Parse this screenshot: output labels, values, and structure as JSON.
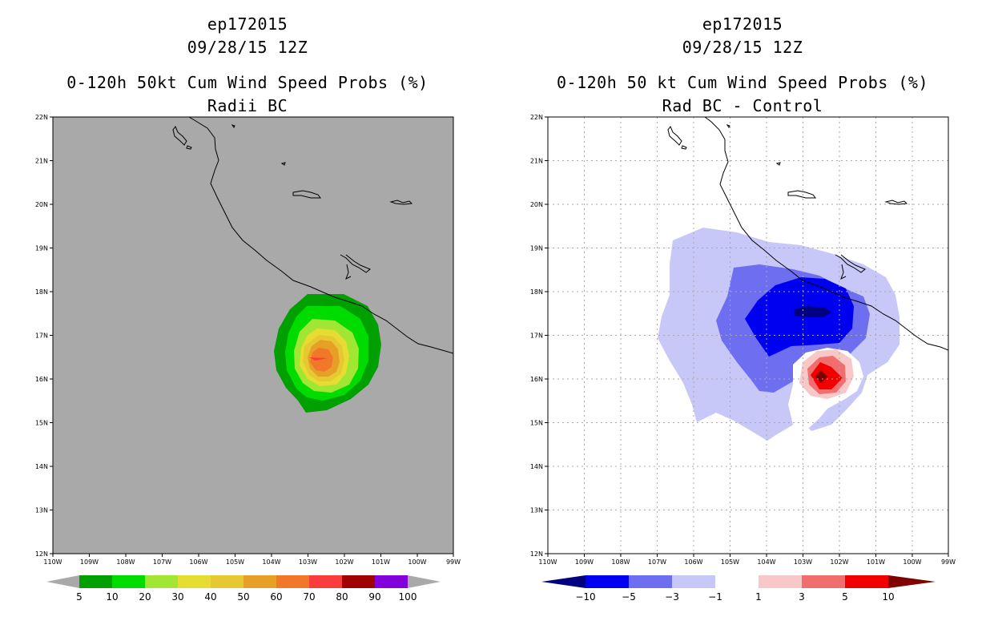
{
  "left": {
    "storm_id": "ep172015",
    "date": "09/28/15 12Z",
    "title": "0-120h 50kt Cum Wind Speed Probs (%)",
    "subtitle": "Radii BC",
    "background_color": "#a9a9a9",
    "lat_labels": [
      "22N",
      "21N",
      "20N",
      "19N",
      "18N",
      "17N",
      "16N",
      "15N",
      "14N",
      "13N",
      "12N"
    ],
    "lon_labels": [
      "110W",
      "109W",
      "108W",
      "107W",
      "106W",
      "105W",
      "104W",
      "103W",
      "102W",
      "101W",
      "100W",
      "99W"
    ],
    "colorbar": {
      "low_arrow": "#a9a9a9",
      "high_arrow": "#a9a9a9",
      "colors": [
        "#00a000",
        "#00dc00",
        "#a0e632",
        "#e6dc32",
        "#e6c832",
        "#e6a028",
        "#f07828",
        "#fa3c3c",
        "#a00000",
        "#8200dc"
      ],
      "labels": [
        "5",
        "10",
        "20",
        "30",
        "40",
        "50",
        "60",
        "70",
        "80",
        "90",
        "100"
      ]
    }
  },
  "right": {
    "storm_id": "ep172015",
    "date": "09/28/15 12Z",
    "title": "0-120h 50 kt Cum Wind Speed Probs (%)",
    "subtitle": "Rad BC - Control",
    "background_color": "#ffffff",
    "lat_labels": [
      "22N",
      "21N",
      "20N",
      "19N",
      "18N",
      "17N",
      "16N",
      "15N",
      "14N",
      "13N",
      "12N"
    ],
    "lon_labels": [
      "110W",
      "109W",
      "108W",
      "107W",
      "106W",
      "105W",
      "104W",
      "103W",
      "102W",
      "101W",
      "100W",
      "99W"
    ],
    "colorbar": {
      "low_arrow": "#000080",
      "high_arrow": "#800000",
      "colors": [
        "#0000f0",
        "#6e6ef0",
        "#c8c8f8",
        "#ffffff",
        "#f8c8c8",
        "#f06e6e",
        "#f00000"
      ],
      "labels": [
        "−10",
        "−5",
        "−3",
        "−1",
        "1",
        "3",
        "5",
        "10"
      ]
    }
  }
}
